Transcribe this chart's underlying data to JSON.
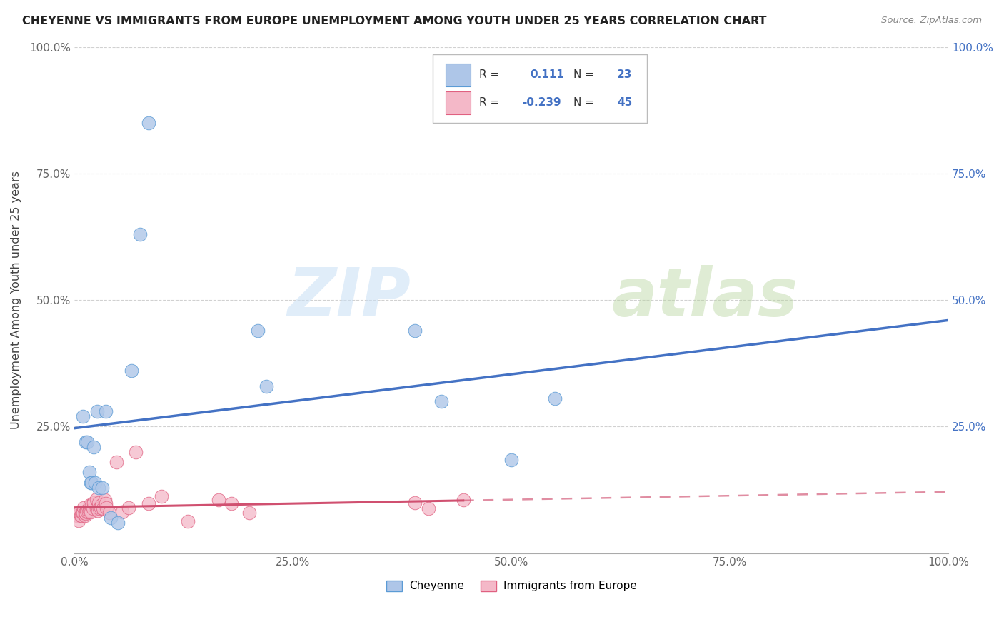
{
  "title": "CHEYENNE VS IMMIGRANTS FROM EUROPE UNEMPLOYMENT AMONG YOUTH UNDER 25 YEARS CORRELATION CHART",
  "source": "Source: ZipAtlas.com",
  "ylabel": "Unemployment Among Youth under 25 years",
  "watermark_zip": "ZIP",
  "watermark_atlas": "atlas",
  "cheyenne_R": "0.111",
  "cheyenne_N": "23",
  "immigrants_R": "-0.239",
  "immigrants_N": "45",
  "cheyenne_color": "#aec6e8",
  "cheyenne_edge_color": "#5b9bd5",
  "cheyenne_line_color": "#4472c4",
  "immigrants_color": "#f4b8c8",
  "immigrants_edge_color": "#e06080",
  "immigrants_line_color": "#d05070",
  "background": "#ffffff",
  "cheyenne_x": [
    0.01,
    0.013,
    0.015,
    0.017,
    0.019,
    0.02,
    0.022,
    0.024,
    0.026,
    0.028,
    0.032,
    0.036,
    0.042,
    0.05,
    0.065,
    0.075,
    0.085,
    0.21,
    0.22,
    0.39,
    0.42,
    0.5,
    0.55
  ],
  "cheyenne_y": [
    0.27,
    0.22,
    0.22,
    0.16,
    0.14,
    0.14,
    0.21,
    0.14,
    0.28,
    0.13,
    0.13,
    0.28,
    0.07,
    0.06,
    0.36,
    0.63,
    0.85,
    0.44,
    0.33,
    0.44,
    0.3,
    0.185,
    0.305
  ],
  "immigrants_x": [
    0.003,
    0.005,
    0.006,
    0.007,
    0.008,
    0.009,
    0.01,
    0.011,
    0.012,
    0.012,
    0.013,
    0.014,
    0.015,
    0.016,
    0.017,
    0.018,
    0.019,
    0.02,
    0.021,
    0.022,
    0.025,
    0.025,
    0.027,
    0.028,
    0.029,
    0.03,
    0.031,
    0.033,
    0.035,
    0.036,
    0.037,
    0.04,
    0.048,
    0.055,
    0.062,
    0.07,
    0.085,
    0.1,
    0.13,
    0.165,
    0.18,
    0.2,
    0.39,
    0.405,
    0.445
  ],
  "immigrants_y": [
    0.075,
    0.065,
    0.08,
    0.075,
    0.075,
    0.08,
    0.08,
    0.09,
    0.075,
    0.08,
    0.078,
    0.085,
    0.082,
    0.082,
    0.085,
    0.095,
    0.082,
    0.095,
    0.088,
    0.1,
    0.088,
    0.107,
    0.085,
    0.1,
    0.088,
    0.09,
    0.095,
    0.088,
    0.105,
    0.098,
    0.09,
    0.08,
    0.18,
    0.082,
    0.09,
    0.2,
    0.098,
    0.112,
    0.063,
    0.105,
    0.098,
    0.08,
    0.1,
    0.088,
    0.105
  ],
  "xticks": [
    0.0,
    0.25,
    0.5,
    0.75,
    1.0
  ],
  "yticks": [
    0.0,
    0.25,
    0.5,
    0.75,
    1.0
  ],
  "xlim": [
    0.0,
    1.0
  ],
  "ylim": [
    0.0,
    1.0
  ]
}
